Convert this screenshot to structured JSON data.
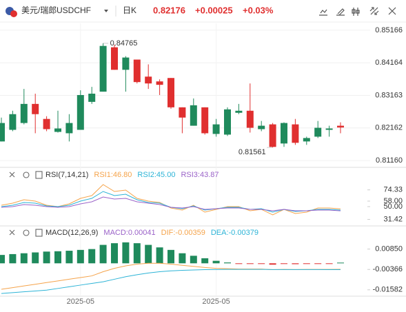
{
  "header": {
    "symbol_name": "美元/瑞郎",
    "symbol": "USDCHF",
    "period": "日K",
    "price": "0.82176",
    "change": "+0.00025",
    "change_pct": "+0.03%"
  },
  "chart_data": [
    {
      "type": "candlestick",
      "categories": [
        null,
        null,
        null,
        null,
        null,
        null,
        null,
        "2025-05",
        null,
        null,
        null,
        null,
        null,
        null,
        null,
        null,
        null,
        null,
        null,
        "2025-05",
        null,
        null,
        null,
        null,
        null,
        null,
        null,
        null,
        null,
        null,
        null
      ],
      "open": [
        0.81747,
        0.82104,
        0.82314,
        0.82901,
        0.82439,
        0.82041,
        0.81999,
        0.82104,
        0.82964,
        0.83278,
        0.84642,
        0.8395,
        0.84264,
        0.8374,
        0.83593,
        0.83698,
        0.82796,
        0.8223,
        0.82796,
        0.81978,
        0.81957,
        0.82628,
        0.82691,
        0.82125,
        0.82272,
        0.81684,
        0.82272,
        0.81747,
        0.81894,
        0.82104,
        0.8223
      ],
      "high": [
        0.82481,
        0.82691,
        0.83362,
        0.83216,
        0.82523,
        0.82691,
        0.82586,
        0.8332,
        0.83425,
        0.84765,
        0.84726,
        0.84369,
        0.84264,
        0.84117,
        0.83656,
        0.83698,
        0.82796,
        0.83069,
        0.82796,
        0.82439,
        0.82796,
        0.82901,
        0.8353,
        0.82377,
        0.82314,
        0.82335,
        0.82439,
        0.81894,
        0.82377,
        0.8223,
        0.82335
      ],
      "low": [
        0.81747,
        0.82062,
        0.82272,
        0.81999,
        0.82062,
        0.8202,
        0.81747,
        0.82104,
        0.82901,
        0.83278,
        0.8395,
        0.83278,
        0.8353,
        0.83362,
        0.83174,
        0.82754,
        0.81999,
        0.8223,
        0.81957,
        0.81894,
        0.81915,
        0.82586,
        0.8202,
        0.82062,
        0.81561,
        0.81579,
        0.81642,
        0.81642,
        0.81852,
        0.81894,
        0.81999
      ],
      "close": [
        0.82314,
        0.82586,
        0.82901,
        0.82586,
        0.82125,
        0.82146,
        0.82314,
        0.83174,
        0.83216,
        0.84684,
        0.8395,
        0.84327,
        0.83572,
        0.8353,
        0.83488,
        0.82796,
        0.82481,
        0.82859,
        0.81999,
        0.82272,
        0.82733,
        0.82691,
        0.82167,
        0.8223,
        0.81579,
        0.82314,
        0.81705,
        0.81852,
        0.82167,
        0.82146,
        0.82176
      ],
      "up_color": "#1f8a5c",
      "down_color": "#e02f2f",
      "ylim": [
        0.8095,
        0.85376
      ],
      "yticks": [
        0.85166,
        0.84164,
        0.83163,
        0.82162,
        {
          "value": 0.8116,
          "label": "0.81160"
        }
      ],
      "grid": true
    },
    {
      "type": "line",
      "title": "RSI(7,14,21)",
      "series": [
        {
          "name": "RSI1:46.80",
          "color": "#f5a34a",
          "values": [
            52,
            55,
            60,
            58,
            52,
            50,
            54,
            62,
            66,
            82,
            72,
            74,
            62,
            58,
            56,
            48,
            45,
            52,
            42,
            46,
            50,
            50,
            44,
            46,
            38,
            46,
            40,
            42,
            48,
            48,
            46.8
          ]
        },
        {
          "name": "RSI2:45.00",
          "color": "#2bb3d6",
          "values": [
            50,
            52,
            56,
            55,
            51,
            50,
            52,
            58,
            62,
            72,
            66,
            68,
            60,
            56,
            55,
            49,
            47,
            51,
            45,
            47,
            49,
            49,
            46,
            47,
            42,
            46,
            43,
            44,
            46,
            46,
            45
          ]
        },
        {
          "name": "RSI3:43.87",
          "color": "#9a62c8",
          "values": [
            49,
            50,
            53,
            52,
            50,
            49,
            50,
            54,
            57,
            64,
            61,
            62,
            57,
            55,
            53,
            49,
            48,
            50,
            46,
            47,
            48,
            48,
            46,
            46,
            44,
            46,
            44,
            44,
            45,
            45,
            43.87
          ]
        }
      ],
      "ylim": [
        25,
        105
      ],
      "yticks": [
        74.33,
        {
          "value": 58,
          "label": "58.00"
        },
        {
          "value": 50,
          "label": "50.00"
        },
        31.42
      ]
    },
    {
      "type": "macd",
      "title": "MACD(12,26,9)",
      "series": [
        {
          "name": "MACD:0.00041",
          "color": "#9a62c8",
          "up_color": "#1f8a5c",
          "down_color": "#e02f2f",
          "kind": "bar",
          "values": [
            0.005,
            0.0055,
            0.006,
            0.0065,
            0.007,
            0.0072,
            0.0075,
            0.008,
            0.0085,
            0.011,
            0.012,
            0.0125,
            0.012,
            0.011,
            0.0095,
            0.008,
            0.006,
            0.0045,
            0.003,
            0.0015,
            0.0005,
            -0.0003,
            -0.0004,
            -0.0003,
            -0.0008,
            -0.0004,
            -0.0005,
            -0.0003,
            -0.0002,
            -0.0001,
            0.00041
          ]
        },
        {
          "name": "DIF:-0.00359",
          "color": "#f5a34a",
          "kind": "line",
          "values": [
            -0.0155,
            -0.0145,
            -0.0135,
            -0.0125,
            -0.0115,
            -0.0105,
            -0.0095,
            -0.0085,
            -0.0075,
            -0.005,
            -0.003,
            -0.0015,
            -0.0005,
            0,
            0,
            -0.0005,
            -0.0012,
            -0.0018,
            -0.0025,
            -0.003,
            -0.0032,
            -0.0034,
            -0.0034,
            -0.0034,
            -0.0038,
            -0.0036,
            -0.0037,
            -0.0036,
            -0.0036,
            -0.0036,
            -0.00359
          ]
        },
        {
          "name": "DEA:-0.00379",
          "color": "#2bb3d6",
          "kind": "line",
          "values": [
            -0.018,
            -0.0175,
            -0.017,
            -0.0165,
            -0.016,
            -0.015,
            -0.014,
            -0.013,
            -0.012,
            -0.011,
            -0.0095,
            -0.008,
            -0.0068,
            -0.0058,
            -0.005,
            -0.0045,
            -0.0042,
            -0.004,
            -0.0038,
            -0.0037,
            -0.0036,
            -0.0036,
            -0.0036,
            -0.0036,
            -0.0037,
            -0.0037,
            -0.0037,
            -0.0037,
            -0.0037,
            -0.0038,
            -0.00379
          ]
        }
      ],
      "ylim": [
        -0.0196,
        0.0215
      ],
      "yticks": [
        {
          "value": 0.0085,
          "label": "0.00850"
        },
        -0.00366,
        -0.01582
      ]
    }
  ]
}
